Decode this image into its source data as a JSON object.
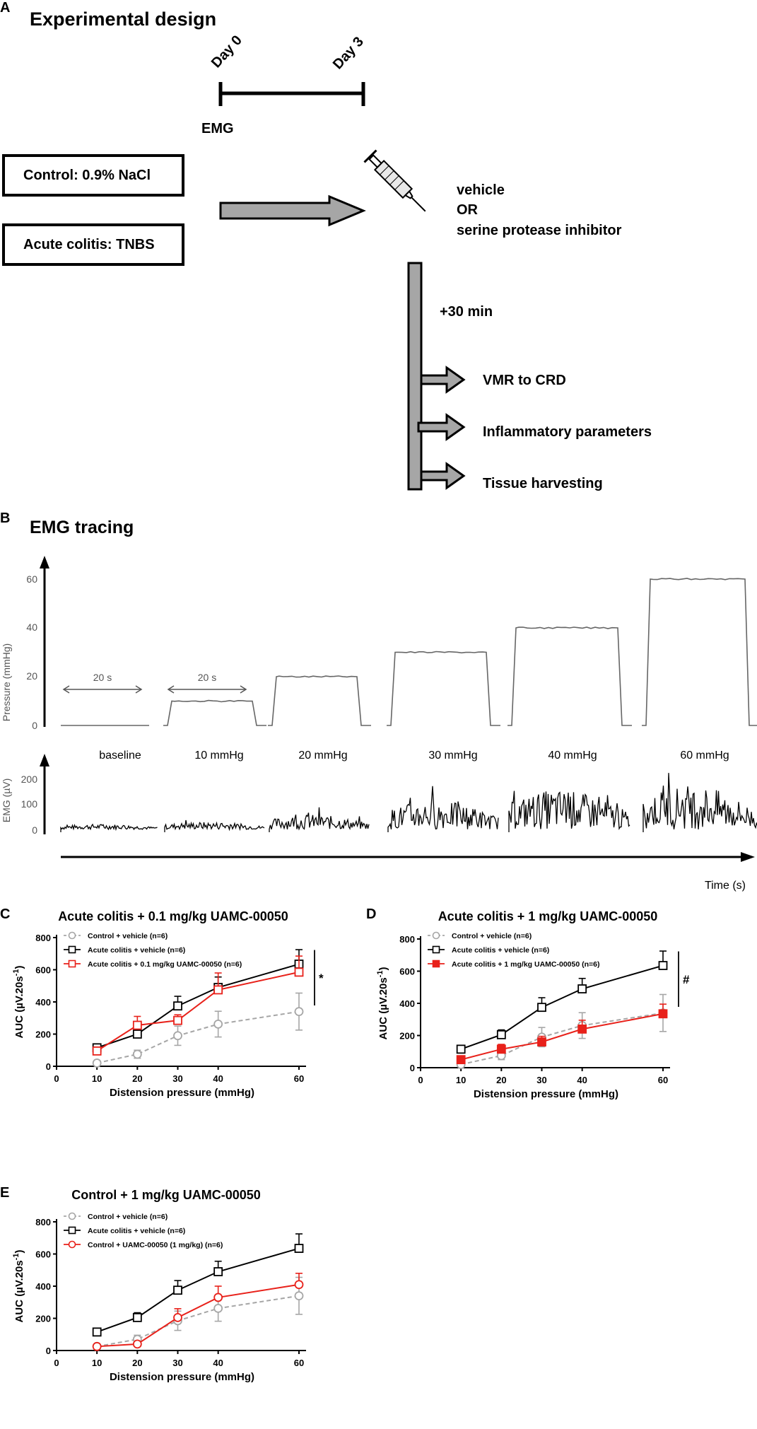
{
  "panelA": {
    "letter": "A",
    "title": "Experimental design",
    "day0": "Day 0",
    "day3": "Day 3",
    "emg": "EMG",
    "box_control": "Control: 0.9% NaCl",
    "box_colitis": "Acute colitis: TNBS",
    "treatment_line1": "vehicle",
    "treatment_line2": "OR",
    "treatment_line3": "serine protease inhibitor",
    "plus30": "+30 min",
    "outcome1": "VMR to CRD",
    "outcome2": "Inflammatory parameters",
    "outcome3": "Tissue harvesting",
    "icons": [
      "arrow-icon",
      "syringe-icon"
    ],
    "arrow_color": "#a6a6a6"
  },
  "panelB": {
    "letter": "B",
    "title": "EMG tracing",
    "pressure_ylabel": "Pressure (mmHg)",
    "pressure_ticks": [
      "0",
      "20",
      "40",
      "60"
    ],
    "duration_label": "20 s",
    "emg_ylabel": "EMG (µV)",
    "emg_ticks": [
      "0",
      "100",
      "200"
    ],
    "segments": [
      "baseline",
      "10 mmHg",
      "20 mmHg",
      "30 mmHg",
      "40 mmHg",
      "60 mmHg"
    ],
    "segment_pressures": [
      0,
      10,
      20,
      30,
      40,
      60
    ],
    "time_label": "Time (s)"
  },
  "chart_data": [
    {
      "panel": "C",
      "type": "line",
      "title": "Acute colitis + 0.1 mg/kg UAMC-00050",
      "xlabel": "Distension pressure (mmHg)",
      "ylabel": "AUC (µV.20s",
      "ylabel_sup": "-1",
      "ylabel_close": ")",
      "xlim": [
        0,
        60
      ],
      "ylim": [
        0,
        800
      ],
      "xticks": [
        0,
        10,
        20,
        30,
        40,
        60
      ],
      "yticks": [
        0,
        200,
        400,
        600,
        800
      ],
      "x": [
        10,
        20,
        30,
        40,
        60
      ],
      "significance": "*",
      "series": [
        {
          "name": "Control + vehicle (n=6)",
          "values": [
            20,
            75,
            190,
            262,
            340
          ],
          "errors": [
            10,
            25,
            60,
            80,
            115
          ],
          "color": "#a6a6a6",
          "marker": "circle-open",
          "dashed": true
        },
        {
          "name": "Acute colitis + vehicle (n=6)",
          "values": [
            115,
            200,
            375,
            490,
            635
          ],
          "errors": [
            18,
            30,
            60,
            65,
            90
          ],
          "color": "#000000",
          "marker": "square-open",
          "dashed": false
        },
        {
          "name": "Acute colitis + 0.1 mg/kg UAMC-00050 (n=6)",
          "values": [
            95,
            255,
            285,
            475,
            585
          ],
          "errors": [
            15,
            55,
            35,
            105,
            100
          ],
          "color": "#e8211a",
          "marker": "square-open",
          "dashed": false
        }
      ]
    },
    {
      "panel": "D",
      "type": "line",
      "title": "Acute colitis + 1 mg/kg UAMC-00050",
      "xlabel": "Distension pressure (mmHg)",
      "ylabel": "AUC (µV.20s",
      "ylabel_sup": "-1",
      "ylabel_close": ")",
      "xlim": [
        0,
        60
      ],
      "ylim": [
        0,
        800
      ],
      "xticks": [
        0,
        10,
        20,
        30,
        40,
        60
      ],
      "yticks": [
        0,
        200,
        400,
        600,
        800
      ],
      "x": [
        10,
        20,
        30,
        40,
        60
      ],
      "significance": "#",
      "series": [
        {
          "name": "Control + vehicle (n=6)",
          "values": [
            20,
            75,
            190,
            262,
            340
          ],
          "errors": [
            10,
            25,
            60,
            80,
            115
          ],
          "color": "#a6a6a6",
          "marker": "circle-open",
          "dashed": true
        },
        {
          "name": "Acute colitis + vehicle (n=6)",
          "values": [
            115,
            205,
            375,
            490,
            635
          ],
          "errors": [
            18,
            30,
            60,
            65,
            90
          ],
          "color": "#000000",
          "marker": "square-open",
          "dashed": false
        },
        {
          "name": "Acute colitis + 1 mg/kg UAMC-00050 (n=6)",
          "values": [
            50,
            115,
            160,
            240,
            335
          ],
          "errors": [
            15,
            30,
            35,
            55,
            60
          ],
          "color": "#e8211a",
          "marker": "square-filled",
          "dashed": false
        }
      ]
    },
    {
      "panel": "E",
      "type": "line",
      "title": "Control + 1 mg/kg UAMC-00050",
      "xlabel": "Distension pressure (mmHg)",
      "ylabel": "AUC (µV.20s",
      "ylabel_sup": "-1",
      "ylabel_close": ")",
      "xlim": [
        0,
        60
      ],
      "ylim": [
        0,
        800
      ],
      "xticks": [
        0,
        10,
        20,
        30,
        40,
        60
      ],
      "yticks": [
        0,
        200,
        400,
        600,
        800
      ],
      "x": [
        10,
        20,
        30,
        40,
        60
      ],
      "significance": "",
      "series": [
        {
          "name": "Control + vehicle (n=6)",
          "values": [
            25,
            70,
            185,
            262,
            340
          ],
          "errors": [
            10,
            25,
            60,
            80,
            115
          ],
          "color": "#a6a6a6",
          "marker": "circle-open",
          "dashed": true
        },
        {
          "name": "Acute colitis + vehicle (n=6)",
          "values": [
            115,
            205,
            375,
            490,
            635
          ],
          "errors": [
            18,
            30,
            60,
            65,
            90
          ],
          "color": "#000000",
          "marker": "square-open",
          "dashed": false
        },
        {
          "name": "Control + UAMC-00050 (1 mg/kg) (n=6)",
          "values": [
            25,
            40,
            205,
            330,
            410
          ],
          "errors": [
            10,
            10,
            55,
            70,
            70
          ],
          "color": "#e8211a",
          "marker": "circle-open",
          "dashed": false
        }
      ]
    }
  ]
}
